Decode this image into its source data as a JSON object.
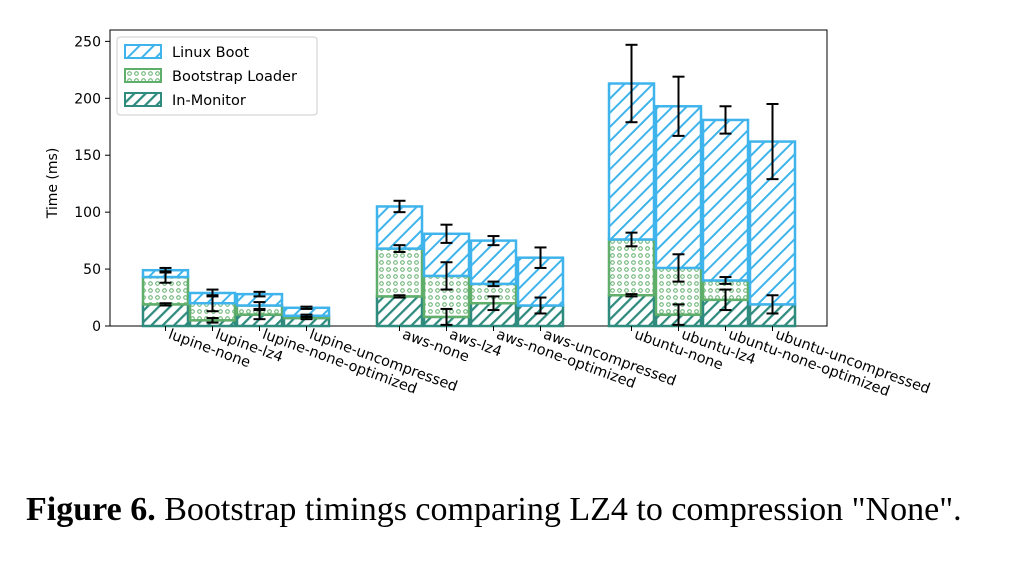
{
  "chart_data": {
    "type": "bar",
    "stacked": true,
    "ylabel": "Time (ms)",
    "ylim": [
      0,
      260
    ],
    "yticks": [
      0,
      50,
      100,
      150,
      200,
      250
    ],
    "legend_position": "top-left",
    "groups": [
      {
        "categories": [
          "lupine-none",
          "lupine-lz4",
          "lupine-none-optimized",
          "lupine-uncompressed"
        ]
      },
      {
        "categories": [
          "aws-none",
          "aws-lz4",
          "aws-none-optimized",
          "aws-uncompressed"
        ]
      },
      {
        "categories": [
          "ubuntu-none",
          "ubuntu-lz4",
          "ubuntu-none-optimized",
          "ubuntu-uncompressed"
        ]
      }
    ],
    "categories": [
      "lupine-none",
      "lupine-lz4",
      "lupine-none-optimized",
      "lupine-uncompressed",
      "aws-none",
      "aws-lz4",
      "aws-none-optimized",
      "aws-uncompressed",
      "ubuntu-none",
      "ubuntu-lz4",
      "ubuntu-none-optimized",
      "ubuntu-uncompressed"
    ],
    "series": [
      {
        "name": "In-Monitor",
        "color": "#2e8b7e",
        "pattern": "diagonal-hatch",
        "values": [
          19,
          5,
          10,
          7,
          26,
          8,
          20,
          18,
          27,
          10,
          23,
          19
        ],
        "errors": [
          1,
          2,
          4,
          1,
          1,
          7,
          6,
          7,
          1,
          9,
          9,
          8
        ]
      },
      {
        "name": "Bootstrap Loader",
        "color": "#5fae6a",
        "pattern": "dots",
        "values": [
          24,
          15,
          8,
          2,
          42,
          36,
          17,
          0,
          49,
          41,
          17,
          0
        ],
        "errors": [
          5,
          7,
          3,
          1,
          3,
          12,
          2,
          0,
          6,
          12,
          3,
          0
        ],
        "totals": [
          43,
          20,
          18,
          9,
          68,
          44,
          37,
          18,
          76,
          51,
          40,
          19
        ]
      },
      {
        "name": "Linux Boot",
        "color": "#3fb4ec",
        "pattern": "wide-diagonal-hatch",
        "values": [
          6,
          9,
          10,
          7,
          37,
          37,
          38,
          42,
          137,
          142,
          141,
          143
        ],
        "errors": [
          2,
          3,
          2,
          1,
          5,
          8,
          4,
          9,
          34,
          26,
          12,
          33
        ],
        "totals": [
          49,
          29,
          28,
          16,
          105,
          81,
          75,
          60,
          213,
          193,
          181,
          162
        ]
      }
    ]
  },
  "caption": {
    "label": "Figure 6.",
    "text": " Bootstrap timings comparing LZ4 to compression \"None\"."
  }
}
